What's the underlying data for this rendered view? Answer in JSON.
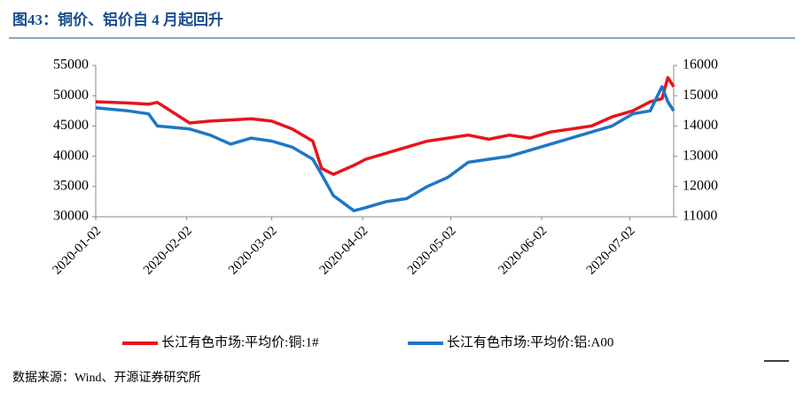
{
  "title": "图43：铜价、铝价自 4 月起回升",
  "source": "数据来源：Wind、开源证券研究所",
  "chart_data": {
    "type": "line",
    "x": [
      "2020-01-02",
      "2020-01-13",
      "2020-01-20",
      "2020-01-23",
      "2020-02-03",
      "2020-02-10",
      "2020-02-17",
      "2020-02-24",
      "2020-03-02",
      "2020-03-09",
      "2020-03-16",
      "2020-03-19",
      "2020-03-23",
      "2020-03-30",
      "2020-04-03",
      "2020-04-10",
      "2020-04-17",
      "2020-04-24",
      "2020-05-01",
      "2020-05-08",
      "2020-05-15",
      "2020-05-22",
      "2020-05-29",
      "2020-06-05",
      "2020-06-12",
      "2020-06-19",
      "2020-06-26",
      "2020-07-03",
      "2020-07-09",
      "2020-07-13",
      "2020-07-15",
      "2020-07-17"
    ],
    "series": [
      {
        "name": "长江有色市场:平均价:铜:1#",
        "color": "#e8141b",
        "values": [
          49000,
          48800,
          48600,
          48900,
          45500,
          45800,
          46000,
          46200,
          45800,
          44500,
          42500,
          38000,
          37000,
          38500,
          39500,
          40500,
          41500,
          42500,
          43000,
          43500,
          42800,
          43500,
          43000,
          44000,
          44500,
          45000,
          46500,
          47500,
          49000,
          49500,
          53000,
          51500
        ]
      },
      {
        "name": "长江有色市场:平均价:铝:A00",
        "color": "#1f77c4",
        "axis": "y2",
        "values": [
          14600,
          14500,
          14400,
          14000,
          13900,
          13700,
          13400,
          13600,
          13500,
          13300,
          12900,
          12400,
          11700,
          11200,
          11300,
          11500,
          11600,
          12000,
          12300,
          12800,
          12900,
          13000,
          13200,
          13400,
          13600,
          13800,
          14000,
          14400,
          14500,
          15300,
          14800,
          14500
        ]
      }
    ],
    "xlim": [
      "2020-01-02",
      "2020-07-17"
    ],
    "xticks": [
      "2020-01-02",
      "2020-02-02",
      "2020-03-02",
      "2020-04-02",
      "2020-05-02",
      "2020-06-02",
      "2020-07-02"
    ],
    "ylim": [
      30000,
      55000
    ],
    "yticks": [
      30000,
      35000,
      40000,
      45000,
      50000,
      55000
    ],
    "y2lim": [
      11000,
      16000
    ],
    "y2ticks": [
      11000,
      12000,
      13000,
      14000,
      15000,
      16000
    ]
  }
}
